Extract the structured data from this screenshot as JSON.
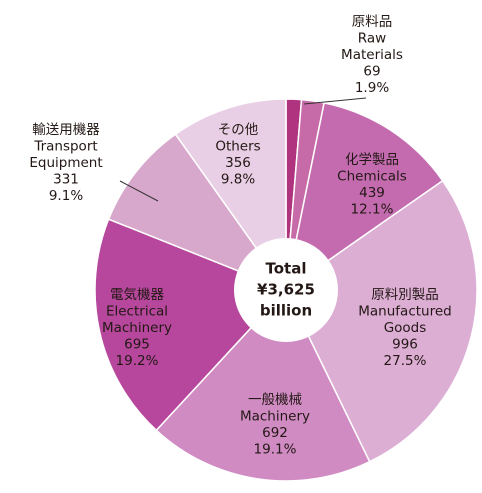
{
  "chart_data": {
    "type": "donut",
    "center_label": [
      "Total",
      "¥3,625",
      "billion"
    ],
    "labels": [
      null,
      [
        "原料品",
        "Raw",
        "Materials"
      ],
      [
        "化学製品",
        "Chemicals"
      ],
      [
        "原料別製品",
        "Manufactured",
        "Goods"
      ],
      [
        "一般機械",
        "Machinery"
      ],
      [
        "電気機器",
        "Electrical",
        "Machinery"
      ],
      [
        "輸送用機器",
        "Transport",
        "Equipment"
      ],
      [
        "その他",
        "Others"
      ]
    ],
    "values": [
      47,
      69,
      439,
      996,
      692,
      695,
      331,
      356
    ],
    "percent_labels": [
      null,
      "1.9%",
      "12.1%",
      "27.5%",
      "19.1%",
      "19.2%",
      "9.1%",
      "9.8%"
    ],
    "colors": [
      "#b0337f",
      "#c76aa8",
      "#c46bb0",
      "#dcaed4",
      "#d08bc3",
      "#b6479c",
      "#d8a7cc",
      "#e9cfe5"
    ]
  }
}
